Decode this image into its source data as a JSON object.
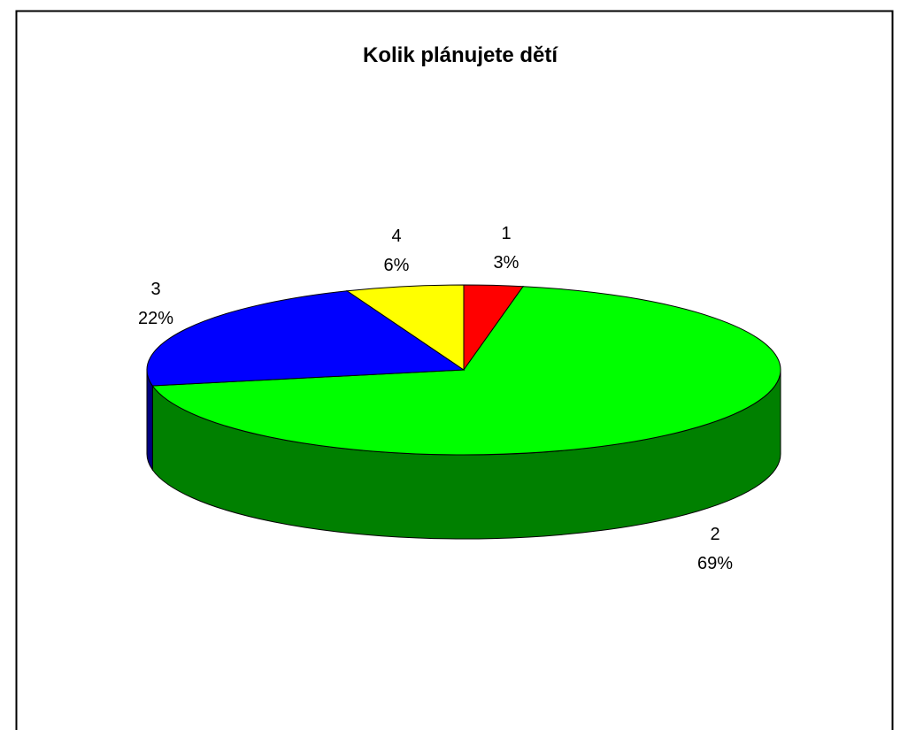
{
  "chart_data": {
    "type": "pie",
    "title": "Kolik plánujete dětí",
    "categories": [
      "1",
      "2",
      "3",
      "4"
    ],
    "values": [
      3,
      69,
      22,
      6
    ],
    "value_labels": [
      "3%",
      "69%",
      "22%",
      "6%"
    ],
    "colors": [
      "#ff0000",
      "#00ff00",
      "#0000ff",
      "#ffff00"
    ],
    "side_colors": [
      "#800000",
      "#008000",
      "#000080",
      "#808000"
    ]
  }
}
